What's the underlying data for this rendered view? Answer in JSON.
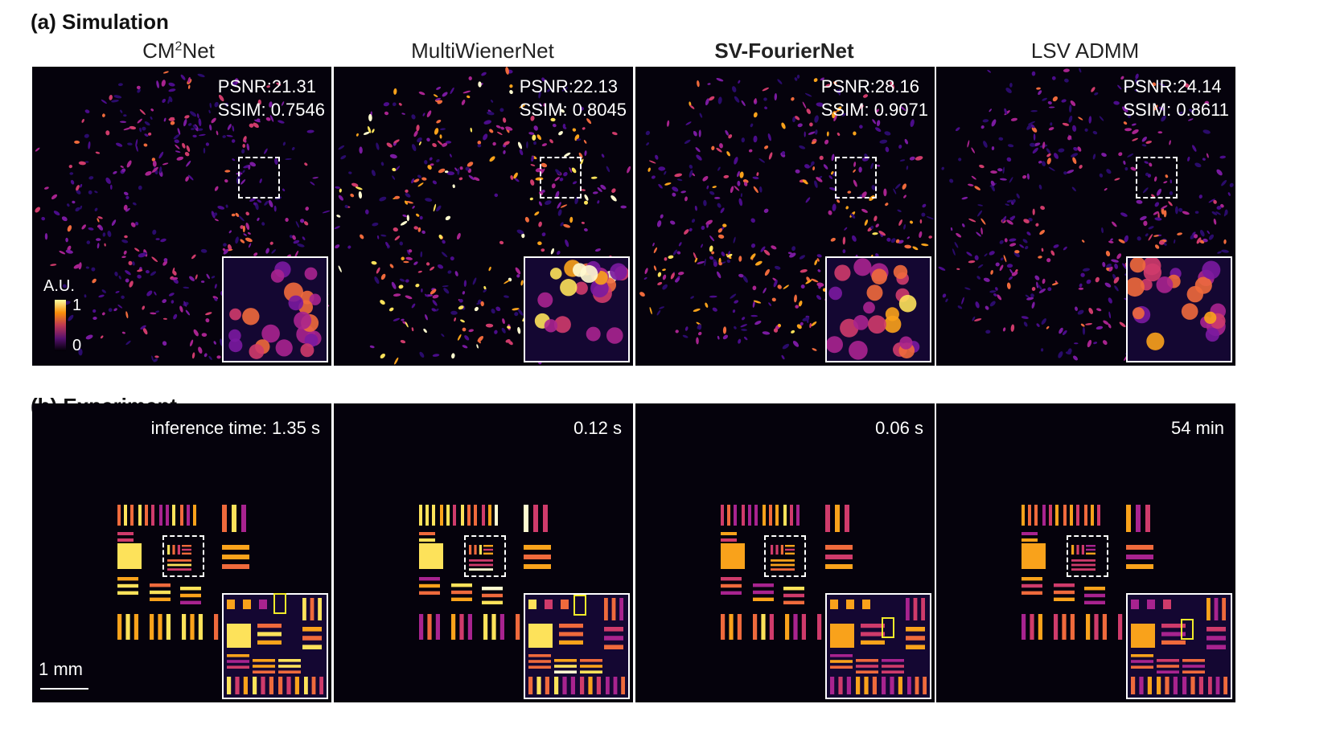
{
  "figure": {
    "sections": {
      "simulation": "(a) Simulation",
      "experiment": "(b) Experiment"
    },
    "columns": [
      {
        "title_main": "CM",
        "title_sup": "2",
        "title_rest": "Net",
        "bold": false
      },
      {
        "title_main": "MultiWienerNet",
        "title_sup": "",
        "title_rest": "",
        "bold": false
      },
      {
        "title_main": "SV-FourierNet",
        "title_sup": "",
        "title_rest": "",
        "bold": true
      },
      {
        "title_main": "LSV ADMM",
        "title_sup": "",
        "title_rest": "",
        "bold": false
      }
    ],
    "simulation_panels": [
      {
        "psnr": "PSNR:21.31",
        "ssim": "SSIM: 0.7546",
        "brightness": 0.55
      },
      {
        "psnr": "PSNR:22.13",
        "ssim": "SSIM: 0.8045",
        "brightness": 0.95
      },
      {
        "psnr": "PSNR:28.16",
        "ssim": "SSIM: 0.9071",
        "brightness": 0.75
      },
      {
        "psnr": "PSNR:24.14",
        "ssim": "SSIM: 0.8611",
        "brightness": 0.6
      }
    ],
    "experiment_panels": [
      {
        "time": "inference time: 1.35 s",
        "brightness": 0.9
      },
      {
        "time": "0.12 s",
        "brightness": 0.95
      },
      {
        "time": "0.06 s",
        "brightness": 0.75
      },
      {
        "time": "54 min",
        "brightness": 0.7
      }
    ],
    "colorbar": {
      "title": "A.U.",
      "max": "1",
      "min": "0"
    },
    "scalebar": {
      "label": "1 mm"
    }
  }
}
